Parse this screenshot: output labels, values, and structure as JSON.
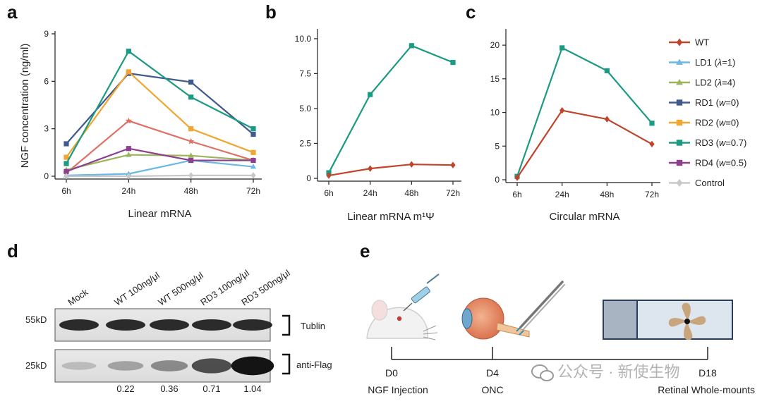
{
  "panels": [
    "a",
    "b",
    "c",
    "d",
    "e"
  ],
  "chart_data": [
    {
      "id": "a",
      "type": "line",
      "title": "",
      "xlabel": "Linear mRNA",
      "ylabel": "NGF concentration (ng/ml)",
      "categories": [
        "6h",
        "24h",
        "48h",
        "72h"
      ],
      "yticks": [
        0,
        3,
        6,
        9
      ],
      "ylim": [
        0,
        9
      ],
      "grid": false,
      "series": [
        {
          "name": "WT",
          "color": "#e07064",
          "marker": "star",
          "values": [
            0.2,
            3.5,
            2.2,
            1.0
          ]
        },
        {
          "name": "LD1",
          "color": "#6bb8e6",
          "marker": "triangle",
          "values": [
            0.05,
            0.15,
            1.0,
            0.6
          ]
        },
        {
          "name": "LD2",
          "color": "#9bb55c",
          "marker": "triangle",
          "values": [
            0.4,
            1.35,
            1.3,
            1.0
          ]
        },
        {
          "name": "RD1",
          "color": "#3f5a8c",
          "marker": "square",
          "values": [
            2.05,
            6.5,
            5.95,
            2.65
          ]
        },
        {
          "name": "RD2",
          "color": "#f0a630",
          "marker": "square",
          "values": [
            1.2,
            6.6,
            3.0,
            1.5
          ]
        },
        {
          "name": "RD3",
          "color": "#1c9a82",
          "marker": "square",
          "values": [
            0.8,
            7.9,
            5.0,
            3.0
          ]
        },
        {
          "name": "RD4",
          "color": "#8c3f8c",
          "marker": "square",
          "values": [
            0.3,
            1.75,
            1.0,
            1.0
          ]
        },
        {
          "name": "Control",
          "color": "#c8c8c8",
          "marker": "diamond",
          "values": [
            0.0,
            0.0,
            0.05,
            0.05
          ]
        }
      ]
    },
    {
      "id": "b",
      "type": "line",
      "title": "",
      "xlabel": "Linear mRNA m¹Ψ",
      "ylabel": "",
      "categories": [
        "6h",
        "24h",
        "48h",
        "72h"
      ],
      "yticks": [
        "0",
        "2.5",
        "5.0",
        "7.5",
        "10.0"
      ],
      "ylim": [
        0,
        10.5
      ],
      "grid": false,
      "series": [
        {
          "name": "RD3",
          "color": "#1c9a82",
          "marker": "square",
          "values": [
            0.4,
            6.0,
            9.5,
            8.3
          ]
        },
        {
          "name": "WT",
          "color": "#c0442c",
          "marker": "diamond",
          "values": [
            0.2,
            0.7,
            1.0,
            0.95
          ]
        }
      ]
    },
    {
      "id": "c",
      "type": "line",
      "title": "",
      "xlabel": "Circular mRNA",
      "ylabel": "",
      "categories": [
        "6h",
        "24h",
        "48h",
        "72h"
      ],
      "yticks": [
        "0",
        "5",
        "10",
        "15",
        "20"
      ],
      "ylim": [
        0,
        22
      ],
      "grid": false,
      "series": [
        {
          "name": "RD3",
          "color": "#1c9a82",
          "marker": "square",
          "values": [
            0.5,
            19.6,
            16.2,
            8.4
          ]
        },
        {
          "name": "WT",
          "color": "#c0442c",
          "marker": "diamond",
          "values": [
            0.3,
            10.3,
            9.0,
            5.3
          ]
        }
      ]
    }
  ],
  "legend": {
    "placement": "right",
    "entries": [
      {
        "name": "WT",
        "suffix": "",
        "color": "#c0442c",
        "marker": "diamond"
      },
      {
        "name": "LD1 (",
        "italic": "λ",
        "rest": "=1)",
        "color": "#6bb8e6",
        "marker": "triangle"
      },
      {
        "name": "LD2 (",
        "italic": "λ",
        "rest": "=4)",
        "color": "#9bb55c",
        "marker": "triangle"
      },
      {
        "name": "RD1 (",
        "italic": "w",
        "rest": "=0)",
        "color": "#3f5a8c",
        "marker": "square"
      },
      {
        "name": "RD2 (",
        "italic": "w",
        "rest": "=0)",
        "color": "#f0a630",
        "marker": "square"
      },
      {
        "name": "RD3 (",
        "italic": "w",
        "rest": "=0.7)",
        "color": "#1c9a82",
        "marker": "square"
      },
      {
        "name": "RD4 (",
        "italic": "w",
        "rest": "=0.5)",
        "color": "#8c3f8c",
        "marker": "square"
      },
      {
        "name": "Control",
        "italic": "",
        "rest": "",
        "color": "#c8c8c8",
        "marker": "diamond"
      }
    ]
  },
  "western_blot": {
    "lanes": [
      "Mock",
      "WT 100ng/μl",
      "WT 500ng/μl",
      "RD3 100ng/μl",
      "RD3 500ng/μl"
    ],
    "size_markers": [
      "55kD",
      "25kD"
    ],
    "bands": [
      "Tublin",
      "anti-Flag"
    ],
    "quantification": [
      "0.22",
      "0.36",
      "0.71",
      "1.04"
    ],
    "flag_intensity": [
      0.08,
      0.22,
      0.36,
      0.71,
      1.04
    ]
  },
  "timeline": {
    "points": [
      {
        "day": "D0",
        "label": "NGF Injection"
      },
      {
        "day": "D4",
        "label": "ONC"
      },
      {
        "day": "D18",
        "label": "Retinal Whole-mounts"
      }
    ]
  },
  "watermark": "公众号 · 新使生物"
}
